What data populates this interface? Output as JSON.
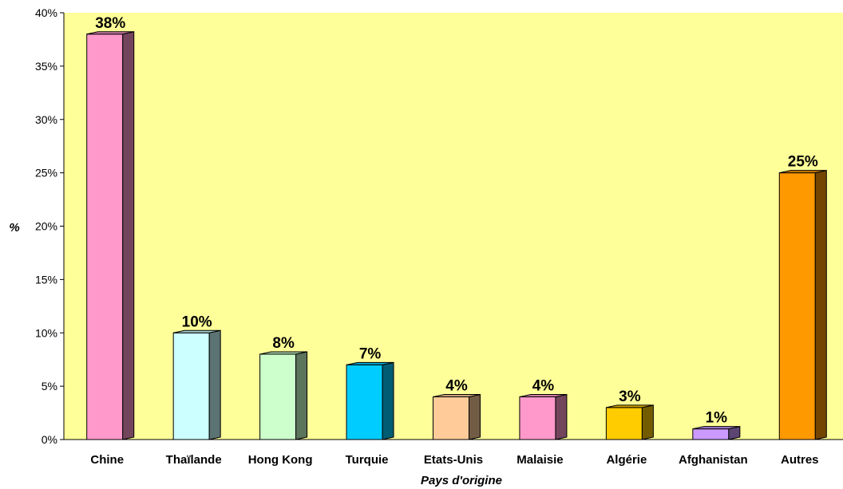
{
  "chart_data": {
    "type": "bar",
    "categories": [
      "Chine",
      "Thaïlande",
      "Hong Kong",
      "Turquie",
      "Etats-Unis",
      "Malaisie",
      "Algérie",
      "Afghanistan",
      "Autres"
    ],
    "values": [
      38,
      10,
      8,
      7,
      4,
      4,
      3,
      1,
      25
    ],
    "data_labels": [
      "38%",
      "10%",
      "8%",
      "7%",
      "4%",
      "4%",
      "3%",
      "1%",
      "25%"
    ],
    "xlabel": "Pays d'origine",
    "ylabel": "%",
    "ylim": [
      0,
      40
    ],
    "yticks": [
      0,
      5,
      10,
      15,
      20,
      25,
      30,
      35,
      40
    ],
    "ytick_labels": [
      "0%",
      "5%",
      "10%",
      "15%",
      "20%",
      "25%",
      "30%",
      "35%",
      "40%"
    ],
    "grid": false,
    "legend": "none",
    "plot_background": "#ffff99",
    "bar_colors": [
      "#ff99cc",
      "#ccffff",
      "#ccffcc",
      "#00ccff",
      "#ffcc99",
      "#ff99cc",
      "#ffcc00",
      "#cc99ff",
      "#ff9900"
    ]
  }
}
